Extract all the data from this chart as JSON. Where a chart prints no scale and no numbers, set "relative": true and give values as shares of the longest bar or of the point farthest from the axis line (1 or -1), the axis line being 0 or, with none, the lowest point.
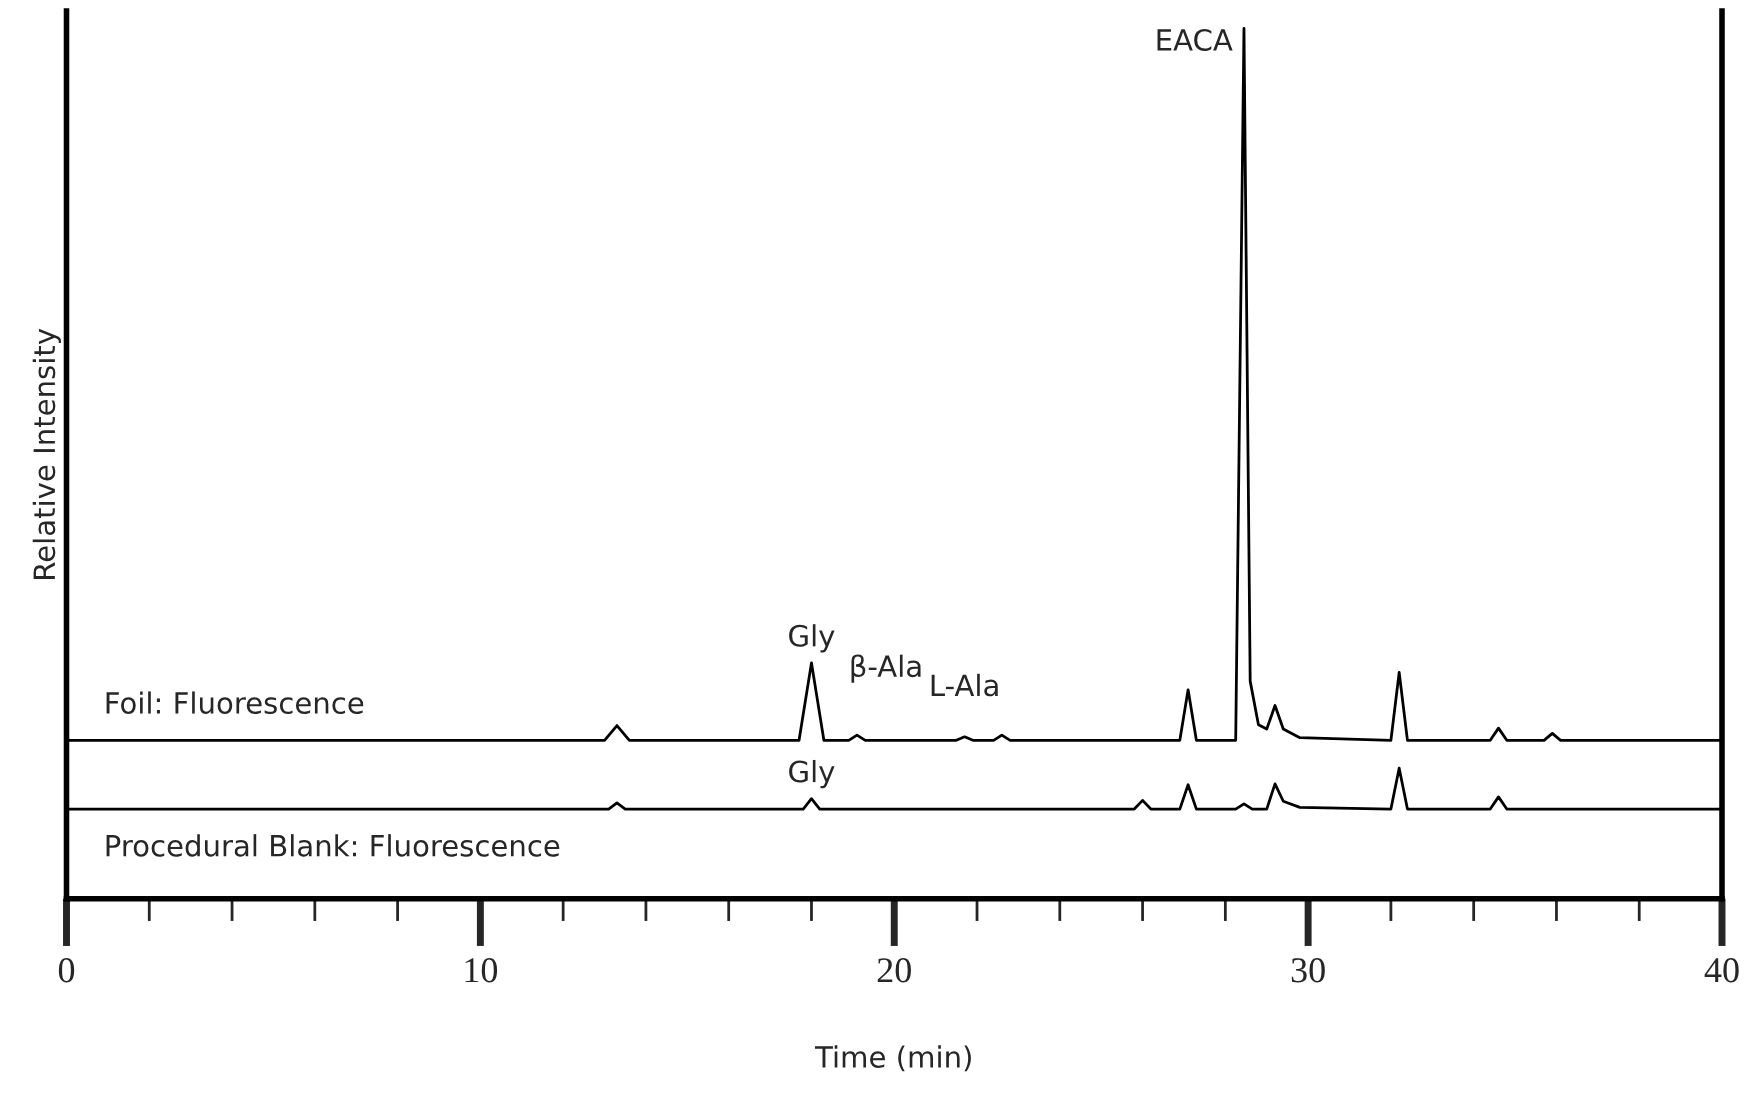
{
  "chart_data": {
    "type": "line",
    "relative": true,
    "xlabel": "Time (min)",
    "ylabel": "Relative Intensity",
    "xlim": [
      0,
      40
    ],
    "xticks": [
      0,
      10,
      20,
      30,
      40
    ],
    "grid": false,
    "legend": false,
    "series": [
      {
        "name": "Foil: Fluorescence",
        "color": "#000000",
        "x": [
          0,
          13.0,
          13.3,
          13.6,
          17.7,
          18.0,
          18.3,
          18.9,
          19.1,
          19.3,
          21.5,
          21.7,
          21.9,
          22.4,
          22.6,
          22.8,
          26.9,
          27.1,
          27.3,
          28.25,
          28.45,
          28.6,
          28.8,
          29.0,
          29.2,
          29.4,
          29.8,
          32.0,
          32.2,
          32.4,
          34.4,
          34.6,
          34.8,
          35.7,
          35.9,
          36.1,
          40
        ],
        "values": [
          0.182,
          0.182,
          0.199,
          0.182,
          0.182,
          0.271,
          0.182,
          0.182,
          0.188,
          0.182,
          0.182,
          0.186,
          0.182,
          0.182,
          0.188,
          0.182,
          0.182,
          0.24,
          0.182,
          0.182,
          1.0,
          0.25,
          0.2,
          0.195,
          0.222,
          0.195,
          0.185,
          0.182,
          0.26,
          0.182,
          0.182,
          0.196,
          0.182,
          0.182,
          0.19,
          0.182,
          0.182
        ]
      },
      {
        "name": "Procedural Blank: Fluorescence",
        "color": "#000000",
        "x": [
          0,
          13.1,
          13.3,
          13.5,
          17.8,
          18.0,
          18.2,
          25.8,
          26.0,
          26.2,
          26.9,
          27.1,
          27.3,
          28.25,
          28.45,
          28.65,
          29.0,
          29.2,
          29.4,
          29.8,
          32.0,
          32.2,
          32.4,
          34.4,
          34.6,
          34.8,
          40
        ],
        "values": [
          0.103,
          0.103,
          0.11,
          0.103,
          0.103,
          0.115,
          0.103,
          0.103,
          0.113,
          0.103,
          0.103,
          0.131,
          0.103,
          0.103,
          0.109,
          0.103,
          0.103,
          0.132,
          0.112,
          0.105,
          0.103,
          0.15,
          0.103,
          0.103,
          0.117,
          0.103,
          0.103
        ]
      }
    ],
    "annotations": [
      {
        "text": "EACA",
        "x": 28.45,
        "y": 1.0
      },
      {
        "text": "Gly",
        "x": 18.0,
        "y": 0.271
      },
      {
        "text": "β-Ala",
        "x": 19.1,
        "y": 0.188
      },
      {
        "text": "L-Ala",
        "x": 21.7,
        "y": 0.186
      },
      {
        "text": "Gly",
        "x": 18.0,
        "y": 0.115
      }
    ]
  }
}
